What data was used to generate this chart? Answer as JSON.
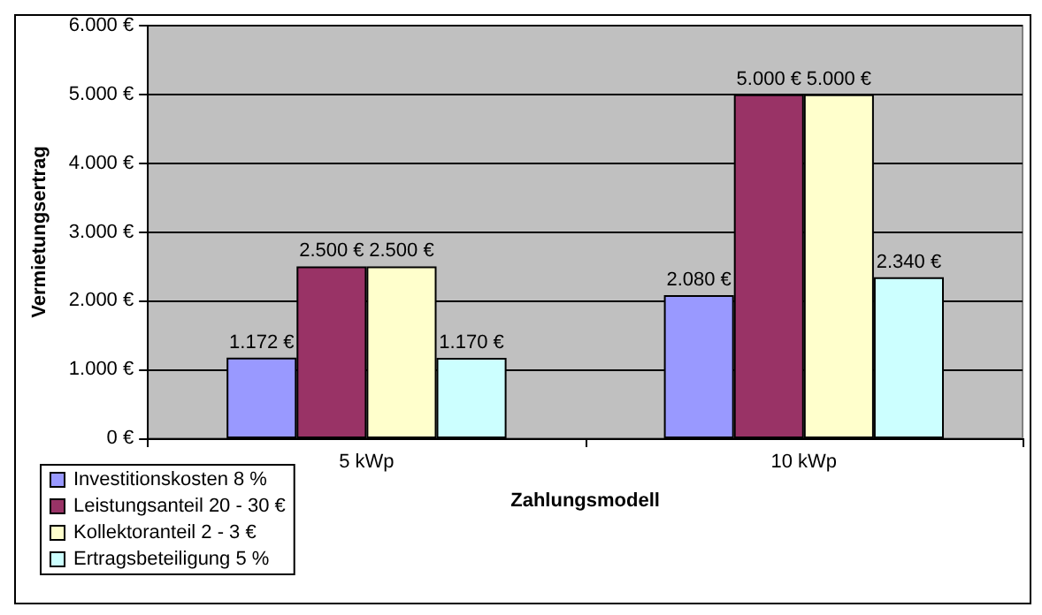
{
  "chart_data": {
    "type": "bar",
    "xlabel": "Zahlungsmodell",
    "ylabel": "Vermietungsertrag",
    "categories": [
      "5 kWp",
      "10 kWp"
    ],
    "series": [
      {
        "name": "Investitionskosten 8 %",
        "color": "#9999ff",
        "values": [
          1172,
          2080
        ],
        "value_labels": [
          "1.172 €",
          "2.080 €"
        ]
      },
      {
        "name": "Leistungsanteil 20 - 30 €",
        "color": "#993366",
        "values": [
          2500,
          5000
        ],
        "value_labels": [
          "2.500 €",
          "5.000 €"
        ]
      },
      {
        "name": "Kollektoranteil 2 - 3 €",
        "color": "#ffffcc",
        "values": [
          2500,
          5000
        ],
        "value_labels": [
          "2.500 €",
          "5.000 €"
        ]
      },
      {
        "name": "Ertragsbeteiligung 5 %",
        "color": "#ccffff",
        "values": [
          1170,
          2340
        ],
        "value_labels": [
          "1.170 €",
          "2.340 €"
        ]
      }
    ],
    "ylim": [
      0,
      6000
    ],
    "yticks": [
      {
        "value": 0,
        "label": "0 €"
      },
      {
        "value": 1000,
        "label": "1.000 €"
      },
      {
        "value": 2000,
        "label": "2.000 €"
      },
      {
        "value": 3000,
        "label": "3.000 €"
      },
      {
        "value": 4000,
        "label": "4.000 €"
      },
      {
        "value": 5000,
        "label": "5.000 €"
      },
      {
        "value": 6000,
        "label": "6.000 €"
      }
    ],
    "grid": "y",
    "legend": "bottom left"
  }
}
